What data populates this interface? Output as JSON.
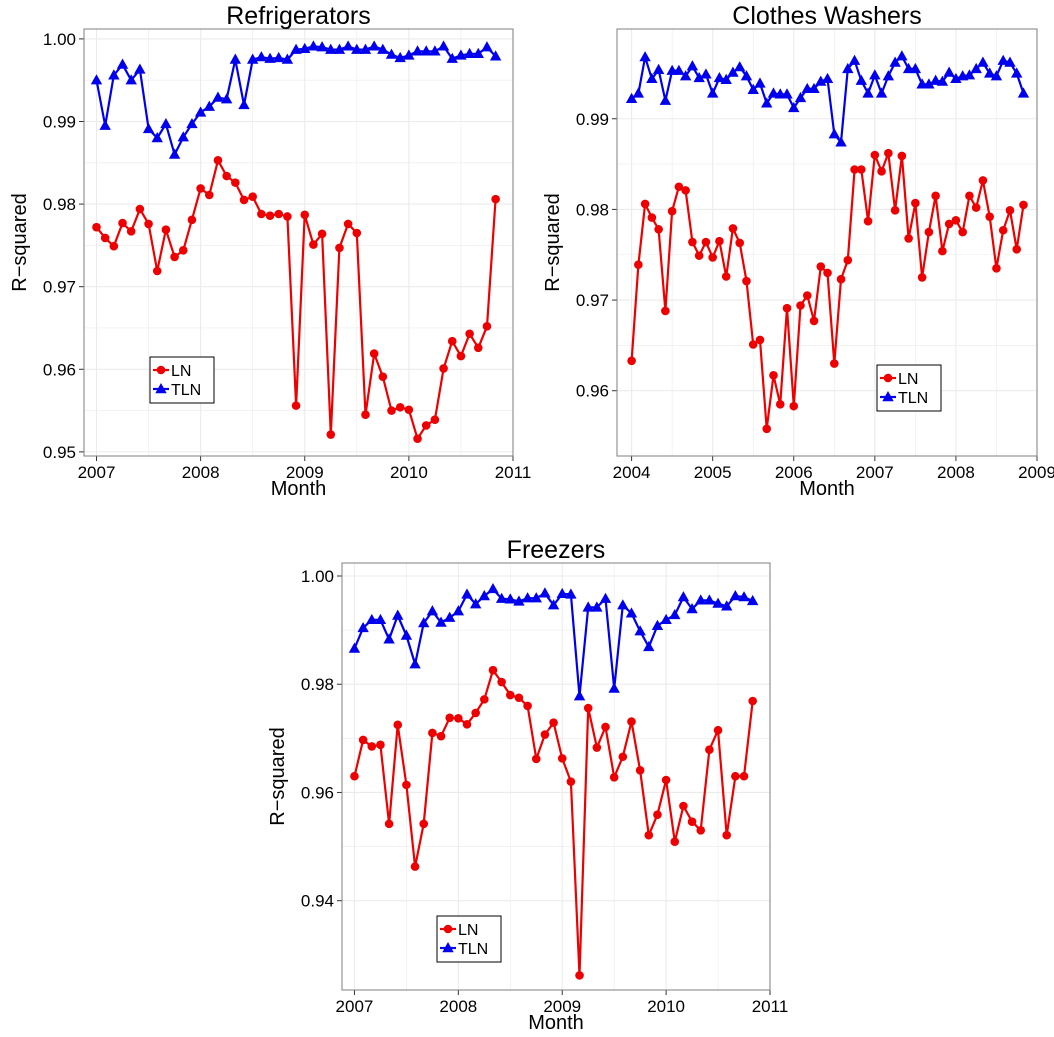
{
  "colors": {
    "LN": "#ee0000",
    "TLN": "#0000ee",
    "grid": "#ebebeb",
    "panel_border": "#7f7f7f"
  },
  "chart_data": [
    {
      "type": "line",
      "title": "Refrigerators",
      "xlabel": "Month",
      "ylabel": "R−squared",
      "xlim": [
        2006.88,
        2011.0
      ],
      "ylim": [
        0.9495,
        1.0012
      ],
      "x_ticks": [
        2007,
        2008,
        2009,
        2010,
        2011
      ],
      "x_tick_labels": [
        "2007",
        "2008",
        "2009",
        "2010",
        "2011"
      ],
      "y_ticks": [
        0.95,
        0.96,
        0.97,
        0.98,
        0.99,
        1.0
      ],
      "y_tick_labels": [
        "0.95",
        "0.96",
        "0.97",
        "0.98",
        "0.99",
        "1.00"
      ],
      "grid": true,
      "legend": "bottom-left",
      "series": [
        {
          "name": "LN",
          "marker": "circle",
          "x_start": 2007.0,
          "x_step": 0.08333,
          "values": [
            0.9772,
            0.9759,
            0.9749,
            0.9777,
            0.9767,
            0.9794,
            0.9776,
            0.9719,
            0.9769,
            0.9736,
            0.9744,
            0.9781,
            0.9819,
            0.9811,
            0.9853,
            0.9834,
            0.9826,
            0.9805,
            0.9809,
            0.9788,
            0.9786,
            0.9788,
            0.9785,
            0.9556,
            0.9787,
            0.9751,
            0.9764,
            0.9521,
            0.9747,
            0.9776,
            0.9765,
            0.9545,
            0.9619,
            0.9591,
            0.955,
            0.9554,
            0.9551,
            0.9516,
            0.9532,
            0.9539,
            0.9601,
            0.9634,
            0.9616,
            0.9643,
            0.9626,
            0.9652,
            0.9806
          ]
        },
        {
          "name": "TLN",
          "marker": "triangle",
          "x_start": 2007.0,
          "x_step": 0.08333,
          "values": [
            0.995,
            0.9895,
            0.9956,
            0.9969,
            0.995,
            0.9963,
            0.9891,
            0.988,
            0.9897,
            0.986,
            0.9881,
            0.9897,
            0.9911,
            0.9918,
            0.9929,
            0.9927,
            0.9975,
            0.992,
            0.9975,
            0.9978,
            0.9976,
            0.9977,
            0.9975,
            0.9987,
            0.9988,
            0.9991,
            0.999,
            0.9987,
            0.9987,
            0.9991,
            0.9987,
            0.9987,
            0.9991,
            0.9987,
            0.9981,
            0.9977,
            0.998,
            0.9985,
            0.9985,
            0.9985,
            0.9991,
            0.9976,
            0.998,
            0.9982,
            0.9982,
            0.999,
            0.9979
          ]
        }
      ]
    },
    {
      "type": "line",
      "title": "Clothes Washers",
      "xlabel": "Month",
      "ylabel": "R−squared",
      "xlim": [
        2003.82,
        2009.0
      ],
      "ylim": [
        0.9528,
        0.9999
      ],
      "x_ticks": [
        2004,
        2005,
        2006,
        2007,
        2008,
        2009
      ],
      "x_tick_labels": [
        "2004",
        "2005",
        "2006",
        "2007",
        "2008",
        "2009"
      ],
      "y_ticks": [
        0.96,
        0.97,
        0.98,
        0.99
      ],
      "y_tick_labels": [
        "0.96",
        "0.97",
        "0.98",
        "0.99"
      ],
      "grid": true,
      "legend": "bottom-right",
      "series": [
        {
          "name": "LN",
          "marker": "circle",
          "x_start": 2004.0,
          "x_step": 0.08333,
          "values": [
            0.9633,
            0.9739,
            0.9806,
            0.9791,
            0.9778,
            0.9688,
            0.9798,
            0.9825,
            0.9821,
            0.9764,
            0.9749,
            0.9764,
            0.9747,
            0.9765,
            0.9726,
            0.9779,
            0.9763,
            0.9721,
            0.9651,
            0.9656,
            0.9558,
            0.9617,
            0.9585,
            0.9691,
            0.9583,
            0.9694,
            0.9705,
            0.9677,
            0.9737,
            0.973,
            0.963,
            0.9723,
            0.9744,
            0.9844,
            0.9844,
            0.9787,
            0.986,
            0.9842,
            0.9862,
            0.9799,
            0.9859,
            0.9768,
            0.9807,
            0.9725,
            0.9775,
            0.9815,
            0.9754,
            0.9784,
            0.9788,
            0.9775,
            0.9815,
            0.9802,
            0.9832,
            0.9792,
            0.9735,
            0.9777,
            0.9799,
            0.9756,
            0.9805
          ]
        },
        {
          "name": "TLN",
          "marker": "triangle",
          "x_start": 2004.0,
          "x_step": 0.08333,
          "values": [
            0.9922,
            0.9928,
            0.9968,
            0.9944,
            0.9954,
            0.992,
            0.9953,
            0.9953,
            0.9947,
            0.9958,
            0.9945,
            0.9949,
            0.9928,
            0.9945,
            0.9943,
            0.9951,
            0.9957,
            0.9947,
            0.9932,
            0.9939,
            0.9917,
            0.9928,
            0.9927,
            0.9927,
            0.9912,
            0.9923,
            0.9933,
            0.9933,
            0.9941,
            0.9944,
            0.9883,
            0.9874,
            0.9955,
            0.9964,
            0.9942,
            0.9928,
            0.9948,
            0.9928,
            0.9947,
            0.9962,
            0.9969,
            0.9955,
            0.9955,
            0.9938,
            0.9938,
            0.9942,
            0.9941,
            0.9951,
            0.9944,
            0.9947,
            0.9948,
            0.9955,
            0.9962,
            0.995,
            0.9947,
            0.9964,
            0.9962,
            0.995,
            0.9928
          ]
        }
      ]
    },
    {
      "type": "line",
      "title": "Freezers",
      "xlabel": "Month",
      "ylabel": "R−squared",
      "xlim": [
        2006.88,
        2011.0
      ],
      "ylim": [
        0.9235,
        1.0024
      ],
      "x_ticks": [
        2007,
        2008,
        2009,
        2010,
        2011
      ],
      "x_tick_labels": [
        "2007",
        "2008",
        "2009",
        "2010",
        "2011"
      ],
      "y_ticks": [
        0.94,
        0.96,
        0.98,
        1.0
      ],
      "y_tick_labels": [
        "0.94",
        "0.96",
        "0.98",
        "1.00"
      ],
      "grid": true,
      "legend": "bottom-left",
      "series": [
        {
          "name": "LN",
          "marker": "circle",
          "x_start": 2007.0,
          "x_step": 0.08333,
          "values": [
            0.963,
            0.9697,
            0.9685,
            0.9688,
            0.9542,
            0.9725,
            0.9614,
            0.9463,
            0.9542,
            0.971,
            0.9704,
            0.9738,
            0.9737,
            0.9726,
            0.9747,
            0.9772,
            0.9826,
            0.9804,
            0.978,
            0.9775,
            0.976,
            0.9662,
            0.9707,
            0.9729,
            0.9663,
            0.962,
            0.9262,
            0.9756,
            0.9683,
            0.9721,
            0.9628,
            0.9666,
            0.9731,
            0.9641,
            0.9521,
            0.9559,
            0.9623,
            0.9509,
            0.9575,
            0.9546,
            0.953,
            0.9679,
            0.9715,
            0.9521,
            0.963,
            0.963,
            0.9769
          ]
        },
        {
          "name": "TLN",
          "marker": "triangle",
          "x_start": 2007.0,
          "x_step": 0.08333,
          "values": [
            0.9866,
            0.9904,
            0.9919,
            0.9919,
            0.9883,
            0.9927,
            0.989,
            0.9837,
            0.9913,
            0.9935,
            0.9914,
            0.9923,
            0.9935,
            0.9966,
            0.9948,
            0.9963,
            0.9976,
            0.9958,
            0.9957,
            0.9953,
            0.9959,
            0.9959,
            0.9968,
            0.9946,
            0.9967,
            0.9966,
            0.9778,
            0.9942,
            0.9942,
            0.9958,
            0.9792,
            0.9946,
            0.9931,
            0.9898,
            0.9869,
            0.9908,
            0.9919,
            0.9928,
            0.9961,
            0.9939,
            0.9955,
            0.9955,
            0.9949,
            0.9944,
            0.9963,
            0.9961,
            0.9954
          ]
        }
      ]
    }
  ]
}
